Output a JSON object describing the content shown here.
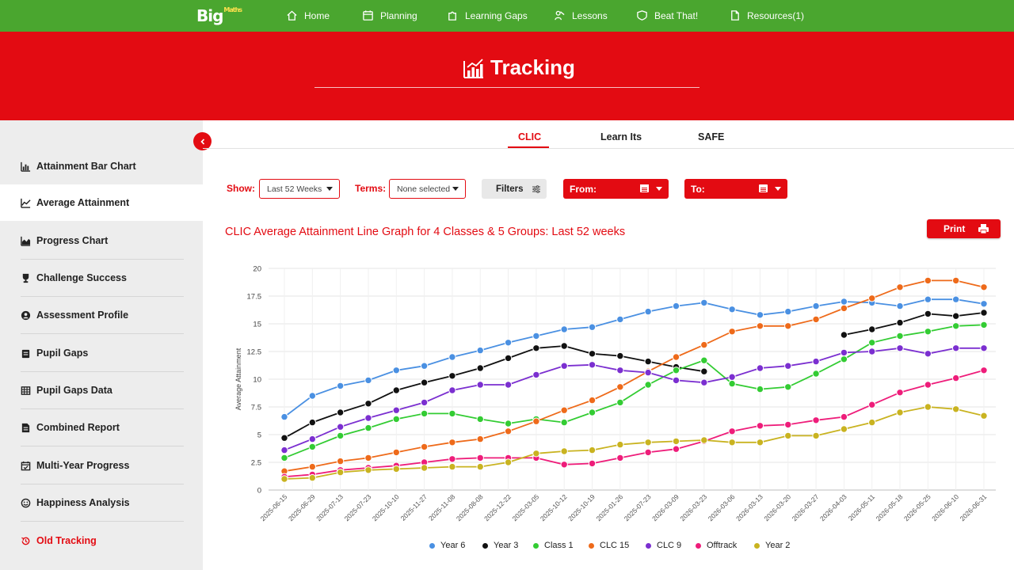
{
  "nav": {
    "logo": "Big",
    "logo_sub": "Maths",
    "items": [
      {
        "label": "Home",
        "icon": "home-icon"
      },
      {
        "label": "Planning",
        "icon": "calendar-icon"
      },
      {
        "label": "Learning Gaps",
        "icon": "puzzle-icon"
      },
      {
        "label": "Lessons",
        "icon": "teacher-icon"
      },
      {
        "label": "Beat That!",
        "icon": "badge-icon"
      },
      {
        "label": "Resources(1)",
        "icon": "document-icon"
      }
    ]
  },
  "banner": {
    "title": "Tracking",
    "icon": "bar-chart-icon"
  },
  "sidebar": {
    "items": [
      {
        "label": "Attainment Bar Chart",
        "icon": "bar-chart-icon"
      },
      {
        "label": "Average Attainment",
        "icon": "line-chart-icon",
        "active": true
      },
      {
        "label": "Progress Chart",
        "icon": "area-chart-icon"
      },
      {
        "label": "Challenge Success",
        "icon": "trophy-icon"
      },
      {
        "label": "Assessment Profile",
        "icon": "user-circle-icon"
      },
      {
        "label": "Pupil Gaps",
        "icon": "clipboard-icon"
      },
      {
        "label": "Pupil Gaps Data",
        "icon": "table-icon"
      },
      {
        "label": "Combined Report",
        "icon": "report-icon"
      },
      {
        "label": "Multi-Year Progress",
        "icon": "calendar-check-icon"
      },
      {
        "label": "Happiness Analysis",
        "icon": "smile-icon"
      },
      {
        "label": "Old Tracking",
        "icon": "history-icon"
      }
    ]
  },
  "tabs": [
    "CLIC",
    "Learn Its",
    "SAFE"
  ],
  "filters": {
    "show_label": "Show:",
    "show_value": "Last 52 Weeks",
    "terms_label": "Terms:",
    "terms_value": "None selected",
    "filters_button": "Filters",
    "from_label": "From:",
    "to_label": "To:"
  },
  "print_label": "Print",
  "colors": {
    "brand_green": "#4aa62f",
    "brand_red": "#e30b12"
  },
  "chart_data": {
    "type": "line",
    "title": "CLIC Average Attainment Line Graph for 4 Classes & 5 Groups: Last 52 weeks",
    "xlabel": "",
    "ylabel": "Average Attainment",
    "ylim": [
      0,
      20
    ],
    "yticks": [
      "0",
      "2.5",
      "5",
      "7.5",
      "10",
      "12.5",
      "15",
      "17.5",
      "20"
    ],
    "grid": true,
    "legend_position": "bottom",
    "categories": [
      "2025-06-15",
      "2025-06-29",
      "2025-07-13",
      "2025-07-23",
      "2025-10-10",
      "2025-11-27",
      "2025-11-08",
      "2025-08-08",
      "2025-12-22",
      "2025-03-05",
      "2025-10-12",
      "2025-10-19",
      "2025-01-26",
      "2025-07-23",
      "2026-03-09",
      "2026-03-23",
      "2026-03-06",
      "2026-03-13",
      "2026-03-20",
      "2026-03-27",
      "2026-04-03",
      "2026-05-11",
      "2026-05-18",
      "2026-05-25",
      "2026-06-10",
      "2026-06-31"
    ],
    "series": [
      {
        "name": "Year 6",
        "color": "#4a90e2",
        "values": [
          6.6,
          8.5,
          9.4,
          9.9,
          10.8,
          11.2,
          12.0,
          12.6,
          13.3,
          13.9,
          14.5,
          14.7,
          15.4,
          16.1,
          16.6,
          16.9,
          16.3,
          15.8,
          16.1,
          16.6,
          17.0,
          16.9,
          16.6,
          17.2,
          17.2,
          16.8
        ]
      },
      {
        "name": "Year 3",
        "color": "#111111",
        "values": [
          4.7,
          6.1,
          7.0,
          7.8,
          9.0,
          9.7,
          10.3,
          11.0,
          11.9,
          12.8,
          13.0,
          12.3,
          12.1,
          11.6,
          11.1,
          10.7,
          null,
          null,
          null,
          null,
          14.0,
          14.5,
          15.1,
          15.9,
          15.7,
          16.0
        ]
      },
      {
        "name": "Class 1",
        "color": "#33cc33",
        "values": [
          2.9,
          3.9,
          4.9,
          5.6,
          6.4,
          6.9,
          6.9,
          6.4,
          6.0,
          6.4,
          6.1,
          7.0,
          7.9,
          9.5,
          10.8,
          11.7,
          9.6,
          9.1,
          9.3,
          10.5,
          11.8,
          13.3,
          13.9,
          14.3,
          14.8,
          14.9
        ]
      },
      {
        "name": "CLC 15",
        "color": "#ee6a1a",
        "values": [
          1.7,
          2.1,
          2.6,
          2.9,
          3.4,
          3.9,
          4.3,
          4.6,
          5.3,
          6.2,
          7.2,
          8.1,
          9.3,
          10.7,
          12.0,
          13.1,
          14.3,
          14.8,
          14.8,
          15.4,
          16.4,
          17.3,
          18.3,
          18.9,
          18.9,
          18.3
        ]
      },
      {
        "name": "CLC 9",
        "color": "#7b2fd0",
        "values": [
          3.6,
          4.6,
          5.7,
          6.5,
          7.2,
          7.9,
          9.0,
          9.5,
          9.5,
          10.4,
          11.2,
          11.3,
          10.8,
          10.6,
          9.9,
          9.7,
          10.2,
          11.0,
          11.2,
          11.6,
          12.4,
          12.5,
          12.8,
          12.3,
          12.8,
          12.8
        ]
      },
      {
        "name": "Offtrack",
        "color": "#ee1d7a",
        "values": [
          1.2,
          1.4,
          1.8,
          2.0,
          2.2,
          2.5,
          2.8,
          2.9,
          2.9,
          2.9,
          2.3,
          2.4,
          2.9,
          3.4,
          3.7,
          4.4,
          5.3,
          5.8,
          5.9,
          6.3,
          6.6,
          7.7,
          8.8,
          9.5,
          10.1,
          10.8
        ]
      },
      {
        "name": "Year 2",
        "color": "#c9b320",
        "values": [
          1.0,
          1.1,
          1.6,
          1.8,
          1.9,
          2.0,
          2.1,
          2.1,
          2.5,
          3.3,
          3.5,
          3.6,
          4.1,
          4.3,
          4.4,
          4.5,
          4.3,
          4.3,
          4.9,
          4.9,
          5.5,
          6.1,
          7.0,
          7.5,
          7.3,
          6.7
        ]
      }
    ]
  }
}
